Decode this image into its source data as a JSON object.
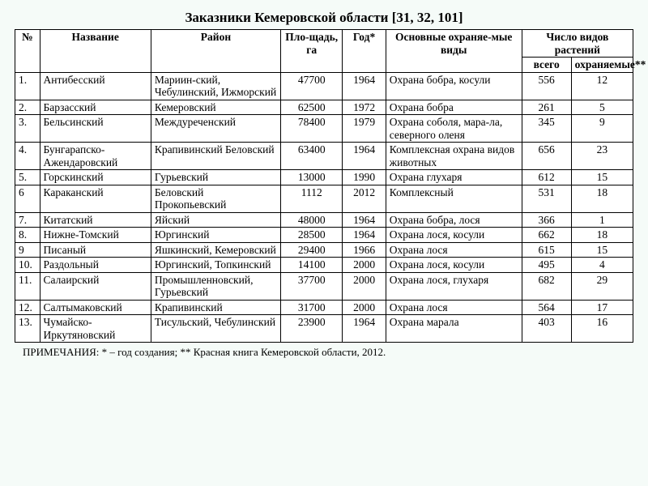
{
  "title": "Заказники Кемеровской области [31, 32, 101]",
  "headers": {
    "num": "№",
    "name": "Название",
    "district": "Район",
    "area": "Пло-щадь, га",
    "year": "Год*",
    "protected": "Основные охраняе-мые виды",
    "plants_group": "Число видов растений",
    "plants_total": "всего",
    "plants_protected": "охраняемые**"
  },
  "rows": [
    {
      "num": "1.",
      "name": "Антибесский",
      "district": "Мариин-ский, Чебулинский, Ижморский",
      "area": "47700",
      "year": "1964",
      "protected": "Охрана бобра, косули",
      "total": "556",
      "prot": "12"
    },
    {
      "num": "2.",
      "name": "Барзасский",
      "district": "Кемеровский",
      "area": "62500",
      "year": "1972",
      "protected": "Охрана бобра",
      "total": "261",
      "prot": "5"
    },
    {
      "num": "3.",
      "name": "Бельсинский",
      "district": "Междуреченский",
      "area": "78400",
      "year": "1979",
      "protected": "Охрана соболя, мара-ла, северного оленя",
      "total": "345",
      "prot": "9"
    },
    {
      "num": "4.",
      "name": "Бунгарапско-Ажендаровский",
      "district": "Крапивинский Беловский",
      "area": "63400",
      "year": "1964",
      "protected": "Комплексная охрана видов животных",
      "total": "656",
      "prot": "23"
    },
    {
      "num": "5.",
      "name": "Горскинский",
      "district": "Гурьевский",
      "area": "13000",
      "year": "1990",
      "protected": "Охрана глухаря",
      "total": "612",
      "prot": "15"
    },
    {
      "num": "6",
      "name": "Караканский",
      "district": "Беловский Прокопьевский",
      "area": "1112",
      "year": "2012",
      "protected": "Комплексный",
      "total": "531",
      "prot": "18"
    },
    {
      "num": "7.",
      "name": "Китатский",
      "district": "Яйский",
      "area": "48000",
      "year": "1964",
      "protected": "Охрана бобра, лося",
      "total": "366",
      "prot": "1"
    },
    {
      "num": "8.",
      "name": "Нижне-Томский",
      "district": "Юргинский",
      "area": "28500",
      "year": "1964",
      "protected": "Охрана лося, косули",
      "total": "662",
      "prot": "18"
    },
    {
      "num": "9",
      "name": "Писаный",
      "district": "Яшкинский, Кемеровский",
      "area": "29400",
      "year": "1966",
      "protected": "Охрана лося",
      "total": "615",
      "prot": "15"
    },
    {
      "num": "10.",
      "name": "Раздольный",
      "district": "Юргинский, Топкинский",
      "area": "14100",
      "year": "2000",
      "protected": "Охрана лося, косули",
      "total": "495",
      "prot": "4"
    },
    {
      "num": "11.",
      "name": "Салаирский",
      "district": "Промышленновский, Гурьевский",
      "area": "37700",
      "year": "2000",
      "protected": "Охрана лося, глухаря",
      "total": "682",
      "prot": "29"
    },
    {
      "num": "12.",
      "name": "Салтымаковский",
      "district": "Крапивинский",
      "area": "31700",
      "year": "2000",
      "protected": "Охрана лося",
      "total": "564",
      "prot": "17"
    },
    {
      "num": "13.",
      "name": "Чумайско-Иркутяновский",
      "district": "Тисульский, Чебулинский",
      "area": "23900",
      "year": "1964",
      "protected": "Охрана марала",
      "total": "403",
      "prot": "16"
    }
  ],
  "footnote": "ПРИМЕЧАНИЯ: * – год создания; ** Красная книга Кемеровской области, 2012.",
  "style": {
    "background": "#f5fbf8",
    "table_bg": "#ffffff",
    "border_color": "#000000",
    "font_family": "Times New Roman",
    "title_fontsize": 17,
    "cell_fontsize": 13.5,
    "footnote_fontsize": 13,
    "columns": [
      {
        "key": "num",
        "width_pct": 4,
        "align": "left"
      },
      {
        "key": "name",
        "width_pct": 18,
        "align": "left"
      },
      {
        "key": "district",
        "width_pct": 21,
        "align": "left"
      },
      {
        "key": "area",
        "width_pct": 10,
        "align": "center"
      },
      {
        "key": "year",
        "width_pct": 7,
        "align": "center"
      },
      {
        "key": "protected",
        "width_pct": 22,
        "align": "left"
      },
      {
        "key": "total",
        "width_pct": 8,
        "align": "center"
      },
      {
        "key": "prot",
        "width_pct": 10,
        "align": "center"
      }
    ]
  }
}
